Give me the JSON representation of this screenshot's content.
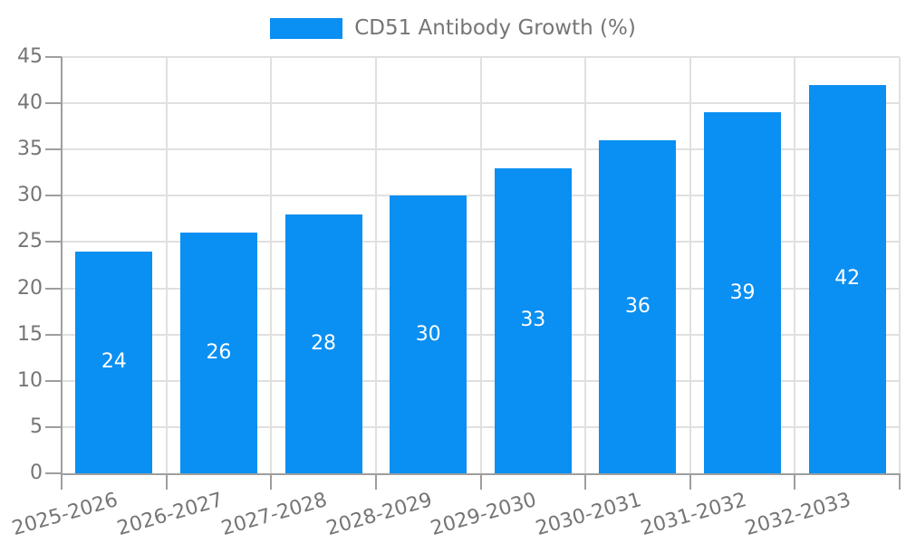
{
  "legend": {
    "label": "CD51 Antibody Growth (%)"
  },
  "chart_data": {
    "type": "bar",
    "title": "CD51 Antibody Growth (%)",
    "categories": [
      "2025-2026",
      "2026-2027",
      "2027-2028",
      "2028-2029",
      "2029-2030",
      "2030-2031",
      "2031-2032",
      "2032-2033"
    ],
    "values": [
      24,
      26,
      28,
      30,
      33,
      36,
      39,
      42
    ],
    "xlabel": "",
    "ylabel": "",
    "ylim": [
      0,
      45
    ],
    "yticks": [
      0,
      5,
      10,
      15,
      20,
      25,
      30,
      35,
      40,
      45
    ],
    "grid": "both",
    "legend_position": "top-center",
    "bar_labels_inside": true
  },
  "colors": {
    "bar": "#0a8ff2",
    "text": "#757575",
    "bar_label": "#ffffff",
    "gridline": "#e0e0e0",
    "axis": "#9e9e9e",
    "background": "#ffffff"
  }
}
